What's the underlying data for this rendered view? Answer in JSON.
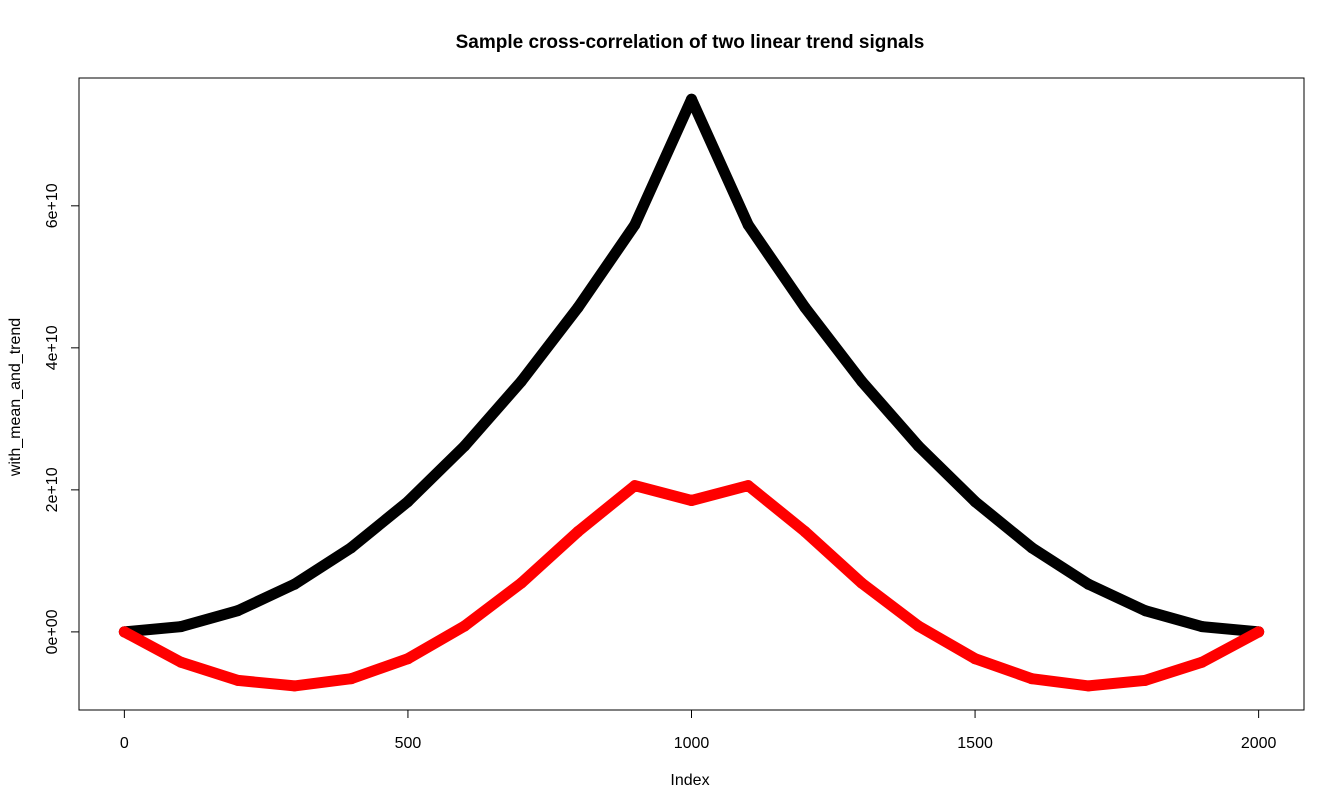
{
  "chart_data": {
    "type": "scatter",
    "title": "Sample cross-correlation of two linear trend signals",
    "xlabel": "Index",
    "ylabel": "with_mean_and_trend",
    "xlim": [
      -80,
      2080
    ],
    "ylim": [
      -11000000000,
      78000000000
    ],
    "x_ticks": [
      0,
      500,
      1000,
      1500,
      2000
    ],
    "x_tick_labels": [
      "0",
      "500",
      "1000",
      "1500",
      "2000"
    ],
    "y_ticks": [
      0,
      20000000000,
      40000000000,
      60000000000
    ],
    "y_tick_labels": [
      "0e+00",
      "2e+10",
      "4e+10",
      "6e+10"
    ],
    "grid": false,
    "legend": "none",
    "series": [
      {
        "color": "#000000",
        "points": [
          [
            0,
            0
          ],
          [
            100,
            750000000
          ],
          [
            200,
            2990000000
          ],
          [
            300,
            6710000000
          ],
          [
            400,
            11850000000
          ],
          [
            500,
            18350000000
          ],
          [
            600,
            26180000000
          ],
          [
            700,
            35300000000
          ],
          [
            800,
            45690000000
          ],
          [
            900,
            57320000000
          ],
          [
            1000,
            75000000000
          ],
          [
            1100,
            57320000000
          ],
          [
            1200,
            45690000000
          ],
          [
            1300,
            35300000000
          ],
          [
            1400,
            26180000000
          ],
          [
            1500,
            18350000000
          ],
          [
            1600,
            11850000000
          ],
          [
            1700,
            6710000000
          ],
          [
            1800,
            2990000000
          ],
          [
            1900,
            750000000
          ],
          [
            2000,
            0
          ]
        ]
      },
      {
        "color": "#ff0000",
        "points": [
          [
            0,
            0
          ],
          [
            100,
            -4280000000
          ],
          [
            200,
            -6830000000
          ],
          [
            300,
            -7600000000
          ],
          [
            400,
            -6590000000
          ],
          [
            500,
            -3780000000
          ],
          [
            600,
            830000000
          ],
          [
            700,
            6880000000
          ],
          [
            800,
            14130000000
          ],
          [
            900,
            20600000000
          ],
          [
            1000,
            18500000000
          ],
          [
            1100,
            20600000000
          ],
          [
            1200,
            14130000000
          ],
          [
            1300,
            6880000000
          ],
          [
            1400,
            830000000
          ],
          [
            1500,
            -3780000000
          ],
          [
            1600,
            -6590000000
          ],
          [
            1700,
            -7600000000
          ],
          [
            1800,
            -6830000000
          ],
          [
            1900,
            -4280000000
          ],
          [
            2000,
            0
          ]
        ]
      }
    ]
  }
}
